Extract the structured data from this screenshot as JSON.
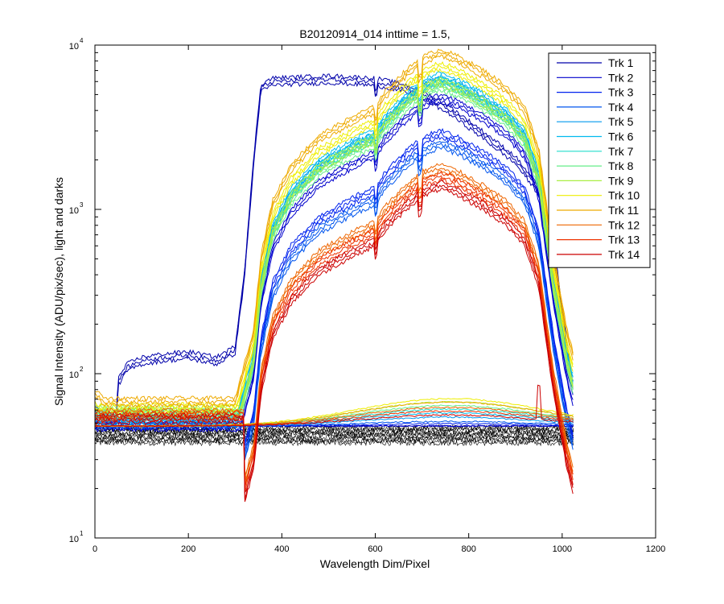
{
  "chart_data": {
    "type": "line",
    "title": "B20120914_014 inttime = 1.5,",
    "xlabel": "Wavelength Dim/Pixel",
    "ylabel": "Signal Intensity (ADU/pix/sec), light and darks",
    "xlim": [
      0,
      1200
    ],
    "ylim": [
      10,
      10000
    ],
    "yscale": "log",
    "xticks": [
      "0",
      "200",
      "400",
      "600",
      "800",
      "1000",
      "1200"
    ],
    "yticks": [
      {
        "base": "10",
        "exp": "1"
      },
      {
        "base": "10",
        "exp": "2"
      },
      {
        "base": "10",
        "exp": "3"
      },
      {
        "base": "10",
        "exp": "4"
      }
    ],
    "legend_position": "top-right",
    "grid": false,
    "series": [
      {
        "name": "Trk 1",
        "color": "#0000aa",
        "profile": "early",
        "peak": 6000,
        "dark": 48,
        "x": [
          0,
          45,
          50,
          70,
          100,
          140,
          200,
          260,
          300,
          320,
          340,
          355,
          380,
          500,
          600,
          660,
          700,
          760,
          820,
          900,
          950,
          990,
          1020,
          1030
        ],
        "y": [
          60,
          50,
          90,
          110,
          120,
          125,
          130,
          120,
          140,
          400,
          2000,
          5500,
          6000,
          6200,
          6000,
          5500,
          5000,
          4000,
          3000,
          2000,
          1300,
          400,
          90,
          70
        ]
      },
      {
        "name": "Trk 2",
        "color": "#0000cc",
        "profile": "main",
        "peak": 4800,
        "dark": 48
      },
      {
        "name": "Trk 3",
        "color": "#0022ee",
        "profile": "main",
        "peak": 2900,
        "dark": 49
      },
      {
        "name": "Trk 4",
        "color": "#0055ee",
        "profile": "main",
        "peak": 2500,
        "dark": 50
      },
      {
        "name": "Trk 5",
        "color": "#0099ee",
        "profile": "main",
        "peak": 6200,
        "dark": 52
      },
      {
        "name": "Trk 6",
        "color": "#00bbee",
        "profile": "main",
        "peak": 6500,
        "dark": 54
      },
      {
        "name": "Trk 7",
        "color": "#22ddcc",
        "profile": "main",
        "peak": 6000,
        "dark": 56
      },
      {
        "name": "Trk 8",
        "color": "#66ee88",
        "profile": "main",
        "peak": 5600,
        "dark": 58
      },
      {
        "name": "Trk 9",
        "color": "#aaee44",
        "profile": "main",
        "peak": 6000,
        "dark": 60
      },
      {
        "name": "Trk 10",
        "color": "#eeee00",
        "profile": "main",
        "peak": 7500,
        "dark": 62
      },
      {
        "name": "Trk 11",
        "color": "#eeaa00",
        "profile": "main",
        "peak": 9000,
        "dark": 60
      },
      {
        "name": "Trk 12",
        "color": "#ee6600",
        "profile": "main",
        "peak": 1800,
        "dark": 57
      },
      {
        "name": "Trk 13",
        "color": "#ee3300",
        "profile": "main",
        "peak": 1600,
        "dark": 55
      },
      {
        "name": "Trk 14",
        "color": "#cc0000",
        "profile": "main",
        "peak": 1400,
        "dark": 53
      }
    ],
    "darks": {
      "color": "#000000",
      "low": 38,
      "high": 47,
      "x_range": [
        0,
        1024
      ]
    }
  }
}
